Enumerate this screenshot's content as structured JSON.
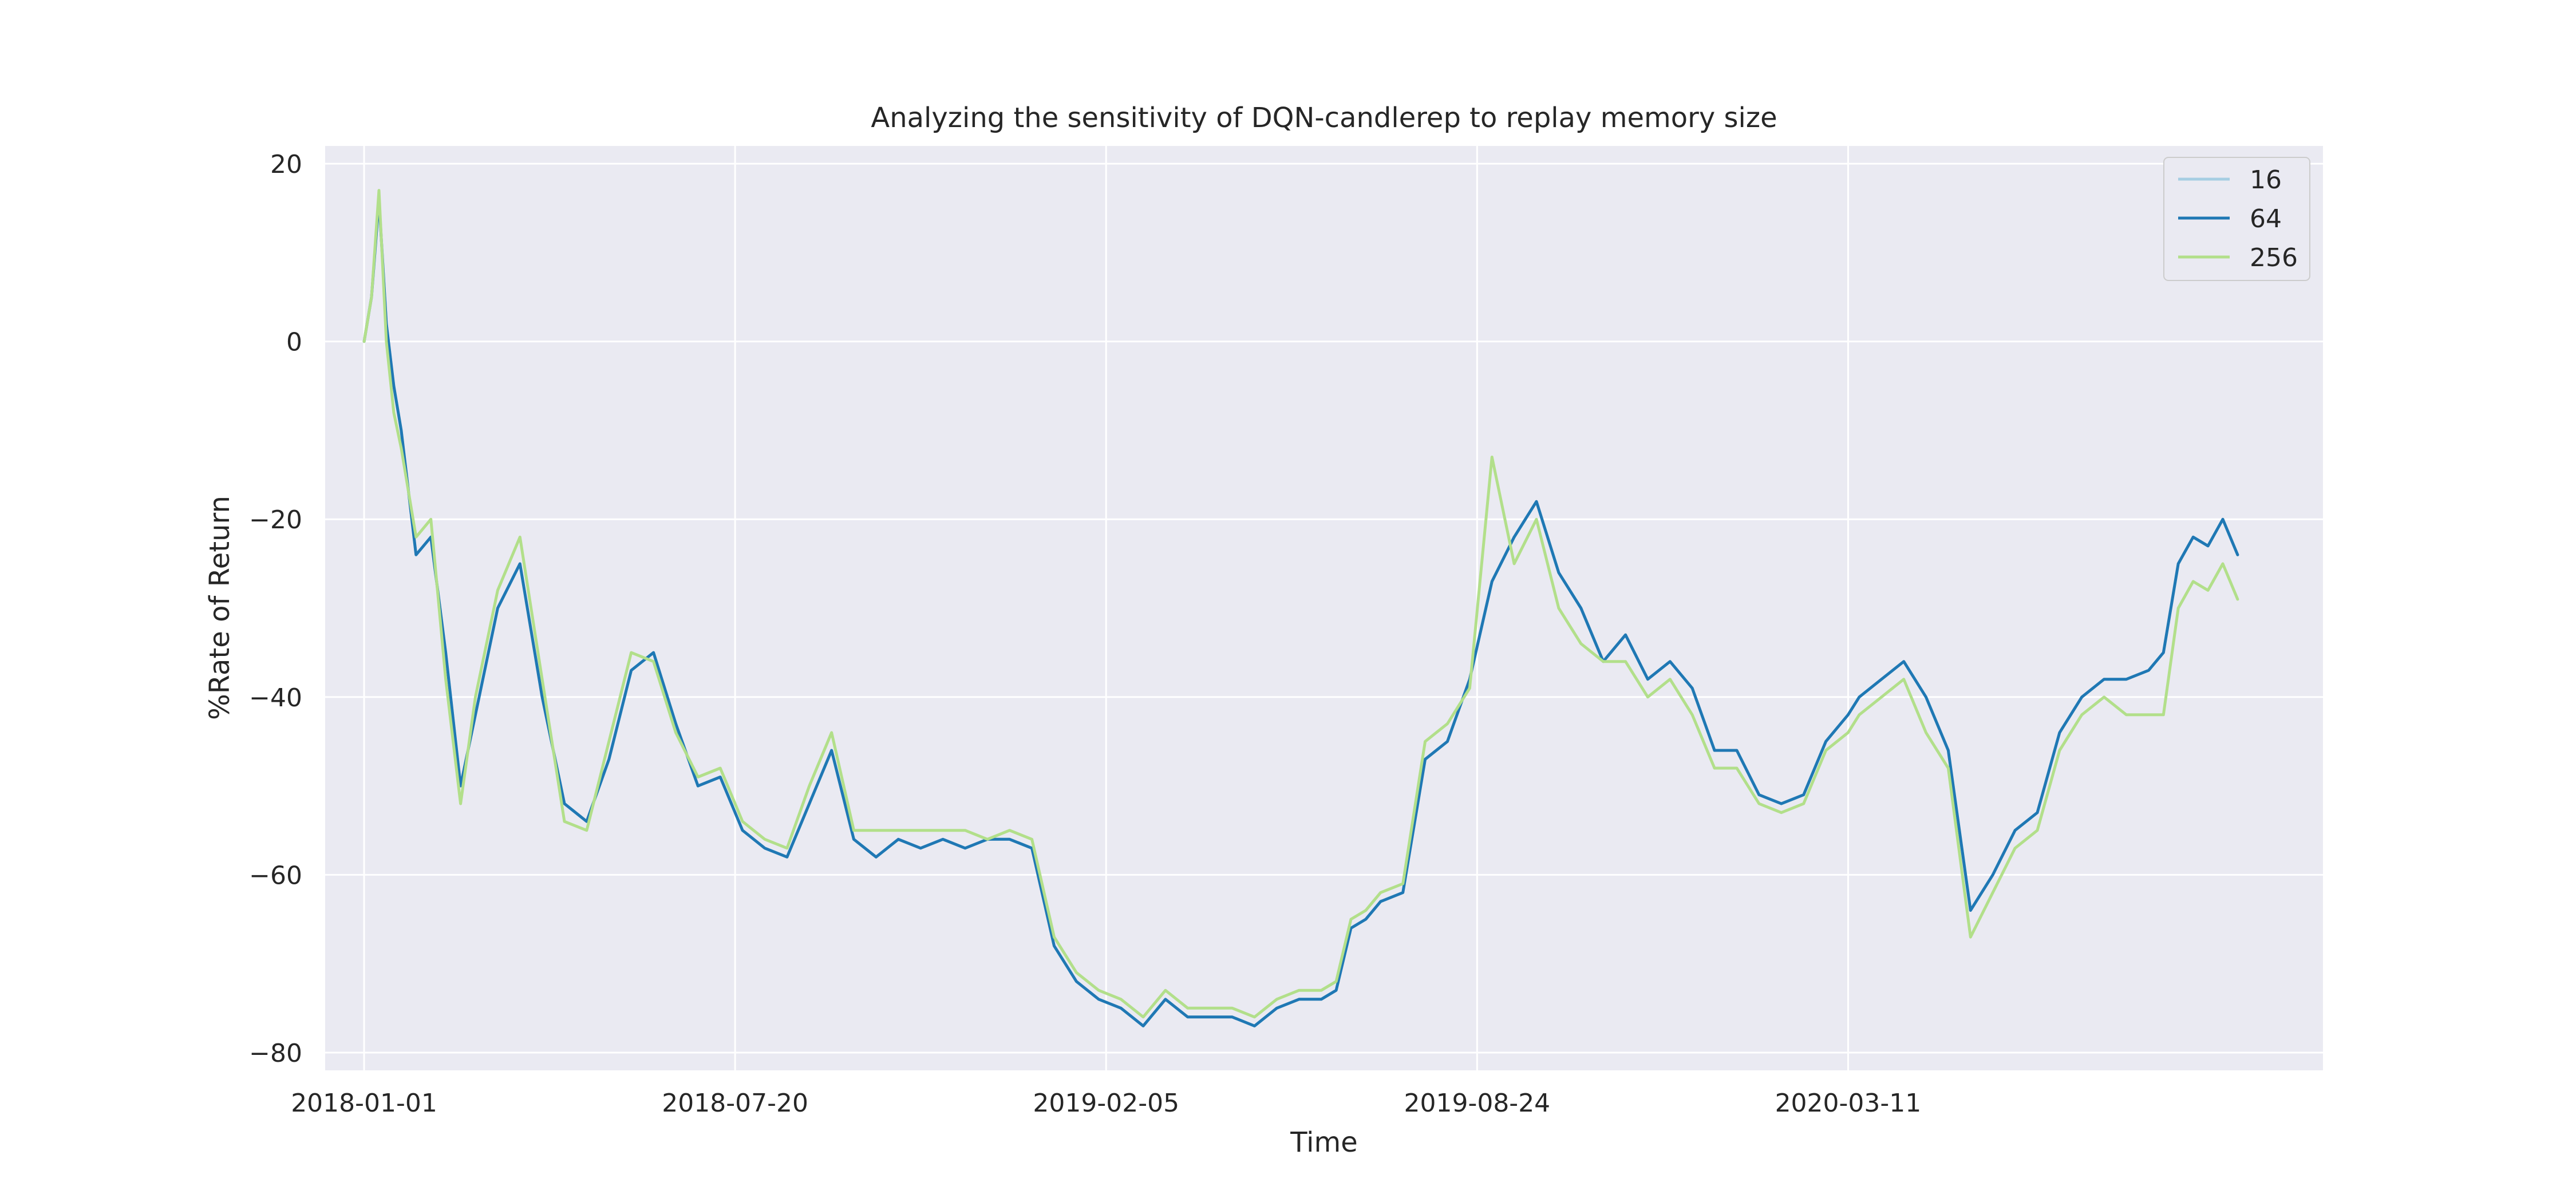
{
  "chart_data": {
    "type": "line",
    "title": "Analyzing the sensitivity of DQN-candlerep to replay memory size",
    "xlabel": "Time",
    "ylabel": "%Rate of Return",
    "x_ticks": [
      "2018-01-01",
      "2018-07-20",
      "2019-02-05",
      "2019-08-24",
      "2020-03-11"
    ],
    "y_ticks": [
      "20",
      "0",
      "−20",
      "−40",
      "−60",
      "−80"
    ],
    "y_tick_values": [
      20,
      0,
      -20,
      -40,
      -60,
      -80
    ],
    "xlim": [
      "2017-12-11",
      "2020-11-22"
    ],
    "ylim": [
      -82,
      22
    ],
    "grid": true,
    "legend_position": "top-right",
    "x": [
      "2018-01-01",
      "2018-01-05",
      "2018-01-09",
      "2018-01-13",
      "2018-01-17",
      "2018-01-21",
      "2018-01-29",
      "2018-02-06",
      "2018-02-14",
      "2018-02-22",
      "2018-03-02",
      "2018-03-14",
      "2018-03-26",
      "2018-04-07",
      "2018-04-19",
      "2018-05-01",
      "2018-05-13",
      "2018-05-25",
      "2018-06-06",
      "2018-06-18",
      "2018-06-30",
      "2018-07-12",
      "2018-07-24",
      "2018-08-05",
      "2018-08-17",
      "2018-08-29",
      "2018-09-10",
      "2018-09-22",
      "2018-10-04",
      "2018-10-16",
      "2018-10-28",
      "2018-11-09",
      "2018-11-21",
      "2018-12-03",
      "2018-12-15",
      "2018-12-27",
      "2019-01-08",
      "2019-01-20",
      "2019-02-01",
      "2019-02-13",
      "2019-02-25",
      "2019-03-09",
      "2019-03-21",
      "2019-04-02",
      "2019-04-14",
      "2019-04-26",
      "2019-05-08",
      "2019-05-20",
      "2019-06-01",
      "2019-06-09",
      "2019-06-17",
      "2019-06-25",
      "2019-07-03",
      "2019-07-15",
      "2019-07-27",
      "2019-08-08",
      "2019-08-20",
      "2019-09-01",
      "2019-09-13",
      "2019-09-25",
      "2019-10-07",
      "2019-10-19",
      "2019-10-31",
      "2019-11-12",
      "2019-11-24",
      "2019-12-06",
      "2019-12-18",
      "2019-12-30",
      "2020-01-11",
      "2020-01-23",
      "2020-02-04",
      "2020-02-16",
      "2020-02-28",
      "2020-03-11",
      "2020-03-17",
      "2020-03-29",
      "2020-04-10",
      "2020-04-22",
      "2020-05-04",
      "2020-05-16",
      "2020-05-28",
      "2020-06-09",
      "2020-06-21",
      "2020-07-03",
      "2020-07-15",
      "2020-07-27",
      "2020-08-08",
      "2020-08-20",
      "2020-08-28",
      "2020-09-05",
      "2020-09-13",
      "2020-09-21",
      "2020-09-29",
      "2020-10-07"
    ],
    "series": [
      {
        "name": "16",
        "color": "#a6cee3",
        "values": [
          0,
          5,
          16,
          2,
          -5,
          -10,
          -24,
          -22,
          -35,
          -50,
          -42,
          -30,
          -25,
          -40,
          -52,
          -54,
          -47,
          -37,
          -35,
          -43,
          -50,
          -49,
          -55,
          -57,
          -58,
          -52,
          -46,
          -56,
          -58,
          -56,
          -57,
          -56,
          -57,
          -56,
          -56,
          -57,
          -68,
          -72,
          -74,
          -75,
          -77,
          -74,
          -76,
          -76,
          -76,
          -77,
          -75,
          -74,
          -74,
          -73,
          -66,
          -65,
          -63,
          -62,
          -47,
          -45,
          -38,
          -27,
          -22,
          -18,
          -26,
          -30,
          -36,
          -33,
          -38,
          -36,
          -39,
          -46,
          -46,
          -51,
          -52,
          -51,
          -45,
          -42,
          -40,
          -38,
          -36,
          -40,
          -46,
          -64,
          -60,
          -55,
          -53,
          -44,
          -40,
          -38,
          -38,
          -37,
          -35,
          -25,
          -22,
          -23,
          -20,
          -24
        ]
      },
      {
        "name": "64",
        "color": "#1f78b4",
        "values": [
          0,
          5,
          16,
          2,
          -5,
          -10,
          -24,
          -22,
          -35,
          -50,
          -42,
          -30,
          -25,
          -40,
          -52,
          -54,
          -47,
          -37,
          -35,
          -43,
          -50,
          -49,
          -55,
          -57,
          -58,
          -52,
          -46,
          -56,
          -58,
          -56,
          -57,
          -56,
          -57,
          -56,
          -56,
          -57,
          -68,
          -72,
          -74,
          -75,
          -77,
          -74,
          -76,
          -76,
          -76,
          -77,
          -75,
          -74,
          -74,
          -73,
          -66,
          -65,
          -63,
          -62,
          -47,
          -45,
          -38,
          -27,
          -22,
          -18,
          -26,
          -30,
          -36,
          -33,
          -38,
          -36,
          -39,
          -46,
          -46,
          -51,
          -52,
          -51,
          -45,
          -42,
          -40,
          -38,
          -36,
          -40,
          -46,
          -64,
          -60,
          -55,
          -53,
          -44,
          -40,
          -38,
          -38,
          -37,
          -35,
          -25,
          -22,
          -23,
          -20,
          -24
        ]
      },
      {
        "name": "256",
        "color": "#b2df8a",
        "values": [
          0,
          5,
          17,
          0,
          -8,
          -12,
          -22,
          -20,
          -38,
          -52,
          -40,
          -28,
          -22,
          -38,
          -54,
          -55,
          -45,
          -35,
          -36,
          -44,
          -49,
          -48,
          -54,
          -56,
          -57,
          -50,
          -44,
          -55,
          -55,
          -55,
          -55,
          -55,
          -55,
          -56,
          -55,
          -56,
          -67,
          -71,
          -73,
          -74,
          -76,
          -73,
          -75,
          -75,
          -75,
          -76,
          -74,
          -73,
          -73,
          -72,
          -65,
          -64,
          -62,
          -61,
          -45,
          -43,
          -39,
          -13,
          -25,
          -20,
          -30,
          -34,
          -36,
          -36,
          -40,
          -38,
          -42,
          -48,
          -48,
          -52,
          -53,
          -52,
          -46,
          -44,
          -42,
          -40,
          -38,
          -44,
          -48,
          -67,
          -62,
          -57,
          -55,
          -46,
          -42,
          -40,
          -42,
          -42,
          -42,
          -30,
          -27,
          -28,
          -25,
          -29
        ]
      }
    ]
  }
}
